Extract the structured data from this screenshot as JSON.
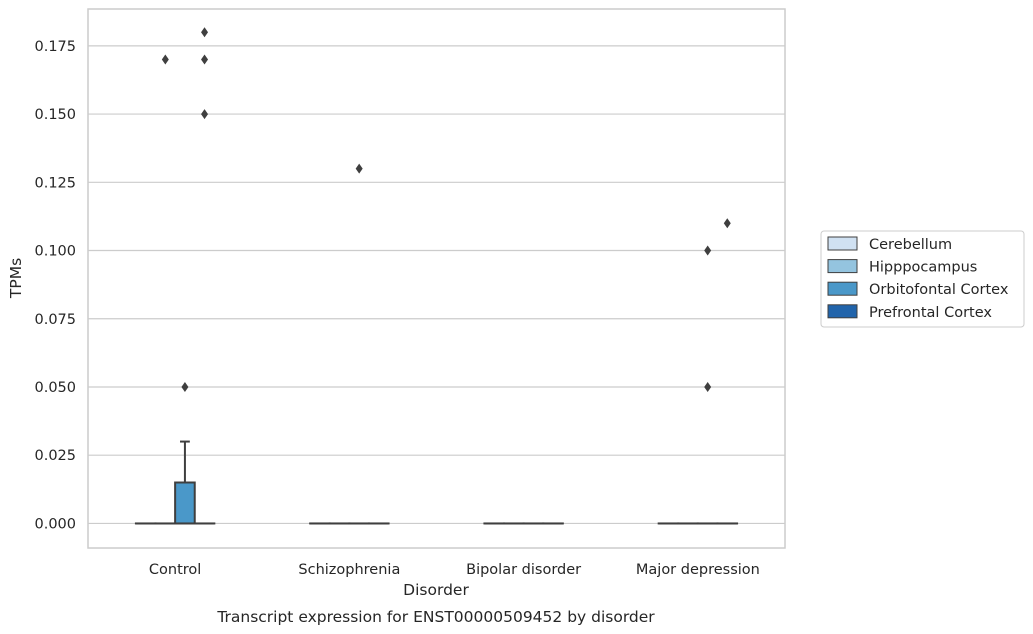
{
  "chart_data": {
    "type": "box",
    "title": "",
    "caption": "Transcript expression for ENST00000509452 by disorder",
    "xlabel": "Disorder",
    "ylabel": "TPMs",
    "categories": [
      "Control",
      "Schizophrenia",
      "Bipolar disorder",
      "Major depression"
    ],
    "ylim": [
      -0.009,
      0.1885
    ],
    "yticks": [
      0.0,
      0.025,
      0.05,
      0.075,
      0.1,
      0.125,
      0.15,
      0.175
    ],
    "ytick_labels": [
      "0.000",
      "0.025",
      "0.050",
      "0.075",
      "0.100",
      "0.125",
      "0.150",
      "0.175"
    ],
    "grid": "horizontal",
    "legend_position": "right",
    "series": [
      {
        "name": "Cerebellum",
        "color": "#d0e1f2",
        "boxes": [
          {
            "category": "Control",
            "q1": 0,
            "median": 0,
            "q3": 0,
            "whisker_low": 0,
            "whisker_high": 0,
            "outliers": []
          },
          {
            "category": "Schizophrenia",
            "q1": 0,
            "median": 0,
            "q3": 0,
            "whisker_low": 0,
            "whisker_high": 0,
            "outliers": []
          },
          {
            "category": "Bipolar disorder",
            "q1": 0,
            "median": 0,
            "q3": 0,
            "whisker_low": 0,
            "whisker_high": 0,
            "outliers": []
          },
          {
            "category": "Major depression",
            "q1": 0,
            "median": 0,
            "q3": 0,
            "whisker_low": 0,
            "whisker_high": 0,
            "outliers": []
          }
        ]
      },
      {
        "name": "Hipppocampus",
        "color": "#94c4df",
        "boxes": [
          {
            "category": "Control",
            "q1": 0,
            "median": 0,
            "q3": 0,
            "whisker_low": 0,
            "whisker_high": 0,
            "outliers": [
              0.17
            ]
          },
          {
            "category": "Schizophrenia",
            "q1": 0,
            "median": 0,
            "q3": 0,
            "whisker_low": 0,
            "whisker_high": 0,
            "outliers": []
          },
          {
            "category": "Bipolar disorder",
            "q1": 0,
            "median": 0,
            "q3": 0,
            "whisker_low": 0,
            "whisker_high": 0,
            "outliers": []
          },
          {
            "category": "Major depression",
            "q1": 0,
            "median": 0,
            "q3": 0,
            "whisker_low": 0,
            "whisker_high": 0,
            "outliers": []
          }
        ]
      },
      {
        "name": "Orbitofontal Cortex",
        "color": "#4a98c9",
        "boxes": [
          {
            "category": "Control",
            "q1": 0,
            "median": 0,
            "q3": 0.015,
            "whisker_low": 0,
            "whisker_high": 0.03,
            "outliers": [
              0.05
            ]
          },
          {
            "category": "Schizophrenia",
            "q1": 0,
            "median": 0,
            "q3": 0,
            "whisker_low": 0,
            "whisker_high": 0,
            "outliers": [
              0.13
            ]
          },
          {
            "category": "Bipolar disorder",
            "q1": 0,
            "median": 0,
            "q3": 0,
            "whisker_low": 0,
            "whisker_high": 0,
            "outliers": []
          },
          {
            "category": "Major depression",
            "q1": 0,
            "median": 0,
            "q3": 0,
            "whisker_low": 0,
            "whisker_high": 0,
            "outliers": [
              0.05,
              0.1
            ]
          }
        ]
      },
      {
        "name": "Prefrontal Cortex",
        "color": "#2164ab",
        "boxes": [
          {
            "category": "Control",
            "q1": 0,
            "median": 0,
            "q3": 0,
            "whisker_low": 0,
            "whisker_high": 0,
            "outliers": [
              0.15,
              0.17,
              0.18
            ]
          },
          {
            "category": "Schizophrenia",
            "q1": 0,
            "median": 0,
            "q3": 0,
            "whisker_low": 0,
            "whisker_high": 0,
            "outliers": []
          },
          {
            "category": "Bipolar disorder",
            "q1": 0,
            "median": 0,
            "q3": 0,
            "whisker_low": 0,
            "whisker_high": 0,
            "outliers": []
          },
          {
            "category": "Major depression",
            "q1": 0,
            "median": 0,
            "q3": 0,
            "whisker_low": 0,
            "whisker_high": 0,
            "outliers": [
              0.11
            ]
          }
        ]
      }
    ]
  }
}
